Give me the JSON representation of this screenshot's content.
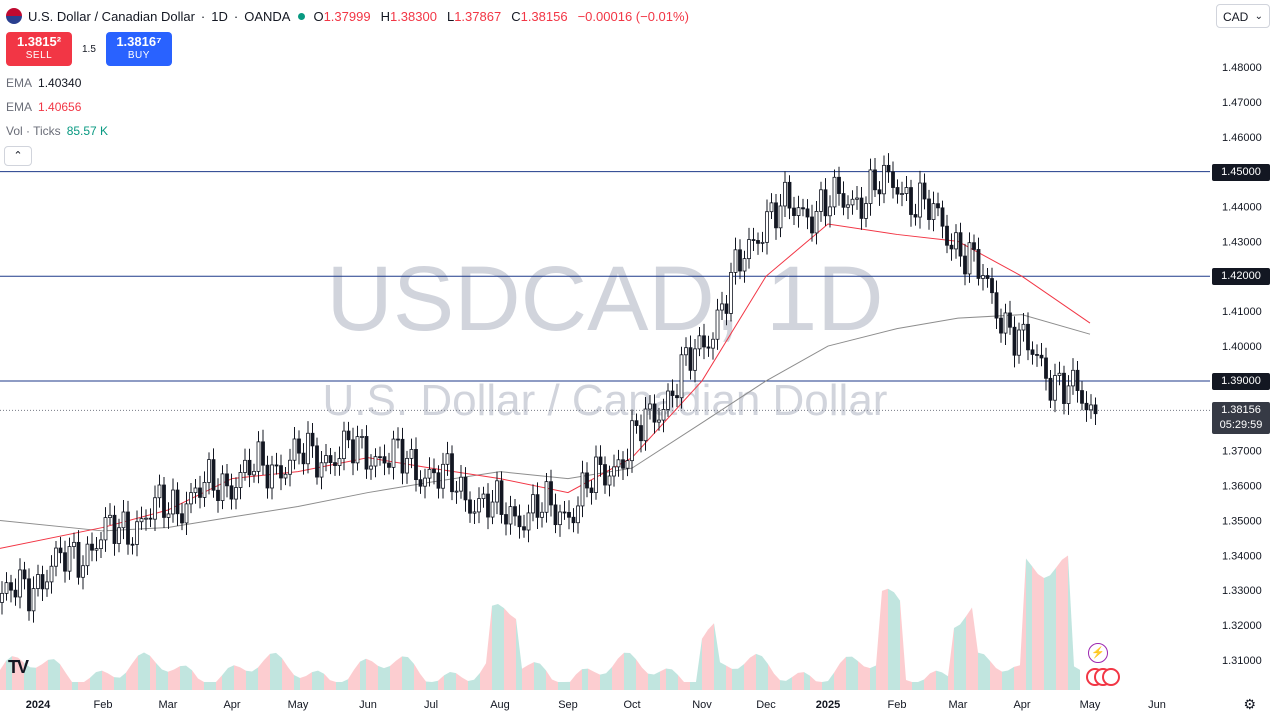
{
  "header": {
    "symbol_title": "U.S. Dollar / Canadian Dollar",
    "interval": "1D",
    "exchange": "OANDA",
    "open_label": "O",
    "open": "1.37999",
    "high_label": "H",
    "high": "1.38300",
    "low_label": "L",
    "low": "1.37867",
    "close_label": "C",
    "close": "1.38156",
    "change": "−0.00016 (−0.01%)"
  },
  "trade": {
    "sell_price": "1.3815²",
    "sell_label": "SELL",
    "spread": "1.5",
    "buy_price": "1.3816⁷",
    "buy_label": "BUY"
  },
  "indicators": [
    {
      "name": "EMA",
      "value": "1.40340",
      "color": "#6a6d78"
    },
    {
      "name": "EMA",
      "value": "1.40656",
      "color": "#f23645"
    },
    {
      "name": "Vol · Ticks",
      "value": "85.57 K",
      "color": "#089981"
    }
  ],
  "collapse_icon": "chevron-up-icon",
  "collapse_glyph": "⌃",
  "currency_button": "CAD",
  "watermark": {
    "symbol": "USDCAD, 1D",
    "name": "U.S. Dollar / Canadian Dollar"
  },
  "price_axis_ticks": [
    "1.48000",
    "1.47000",
    "1.46000",
    "1.45000",
    "1.44000",
    "1.43000",
    "1.42000",
    "1.41000",
    "1.40000",
    "1.39000",
    "1.38000",
    "1.37000",
    "1.36000",
    "1.35000",
    "1.34000",
    "1.33000",
    "1.32000",
    "1.31000"
  ],
  "price_tags": [
    "1.45000",
    "1.42000",
    "1.39000"
  ],
  "last_price": {
    "value": "1.38156",
    "countdown": "05:29:59"
  },
  "time_axis_labels": [
    "2024",
    "Feb",
    "Mar",
    "Apr",
    "May",
    "Jun",
    "Jul",
    "Aug",
    "Sep",
    "Oct",
    "Nov",
    "Dec",
    "2025",
    "Feb",
    "Mar",
    "Apr",
    "May",
    "Jun"
  ],
  "horizontal_levels": [
    1.45,
    1.42,
    1.39
  ],
  "colors": {
    "up": "#089981",
    "down": "#f23645",
    "ema_fast": "#f23645",
    "ema_slow": "#8d8d8d",
    "level": "#1e3a8a"
  },
  "chart_data": {
    "type": "line",
    "title": "U.S. Dollar / Canadian Dollar",
    "x": [
      "2024-01",
      "2024-02",
      "2024-03",
      "2024-04",
      "2024-05",
      "2024-06",
      "2024-07",
      "2024-08",
      "2024-09",
      "2024-10",
      "2024-11",
      "2024-12",
      "2025-01",
      "2025-02",
      "2025-03",
      "2025-04",
      "2025-05"
    ],
    "series": [
      {
        "name": "",
        "values": [
          1.3265,
          1.345,
          1.354,
          1.362,
          1.368,
          1.37,
          1.364,
          1.352,
          1.353,
          1.372,
          1.4,
          1.438,
          1.44,
          1.447,
          1.43,
          1.4,
          1.3815
        ]
      },
      {
        "name": "",
        "values": [
          1.342,
          1.348,
          1.353,
          1.362,
          1.364,
          1.368,
          1.365,
          1.362,
          1.358,
          1.368,
          1.39,
          1.42,
          1.435,
          1.432,
          1.43,
          1.42,
          1.4066
        ]
      },
      {
        "name": "",
        "values": [
          1.35,
          1.347,
          1.348,
          1.351,
          1.354,
          1.358,
          1.361,
          1.364,
          1.362,
          1.365,
          1.378,
          1.39,
          1.4,
          1.405,
          1.408,
          1.409,
          1.4034
        ]
      }
    ],
    "ylim": [
      1.305,
      1.485
    ]
  }
}
